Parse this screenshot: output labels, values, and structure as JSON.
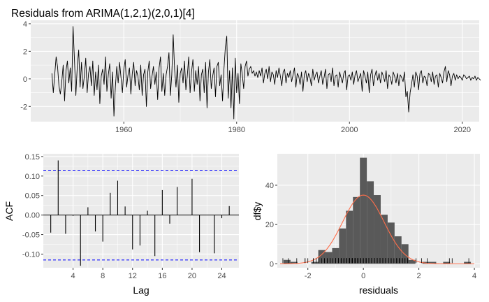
{
  "chart_data": [
    {
      "type": "line",
      "title": "Residuals from ARIMA(1,2,1)(2,0,1)[4]",
      "xlabel": "",
      "ylabel": "",
      "xlim": [
        1943.5,
        2023.0
      ],
      "ylim": [
        -3.1,
        4.25
      ],
      "x_ticks": [
        1960,
        1980,
        2000,
        2020
      ],
      "y_ticks": [
        -2,
        0,
        2,
        4
      ],
      "grid": true,
      "series": [
        {
          "start": 1947.25,
          "frequency": 4,
          "values": [
            0.4,
            -1.0,
            0.3,
            1.6,
            0.9,
            -0.5,
            -1.1,
            -0.2,
            1.0,
            -1.6,
            0.6,
            1.3,
            -0.3,
            0.8,
            -0.9,
            3.8,
            1.4,
            -1.2,
            0.9,
            2.1,
            -0.6,
            1.2,
            -0.7,
            0.2,
            1.5,
            -1.0,
            0.4,
            0.9,
            -0.5,
            1.3,
            -1.2,
            0.5,
            -0.8,
            1.0,
            -1.8,
            0.2,
            0.7,
            -0.4,
            1.6,
            -0.9,
            0.3,
            1.1,
            -1.4,
            0.5,
            -2.7,
            -0.6,
            0.9,
            -0.3,
            1.2,
            0.1,
            -1.0,
            0.7,
            1.4,
            -0.6,
            0.3,
            0.8,
            -1.1,
            0.4,
            1.2,
            -0.5,
            0.6,
            0.2,
            -0.8,
            1.0,
            -1.2,
            0.3,
            0.7,
            -2.0,
            0.5,
            1.3,
            -0.7,
            0.2,
            0.9,
            -0.4,
            0.5,
            -1.5,
            0.8,
            1.6,
            -0.9,
            0.4,
            -1.2,
            0.3,
            0.9,
            1.9,
            -1.2,
            0.3,
            3.2,
            0.7,
            -0.6,
            1.0,
            -1.7,
            0.4,
            0.8,
            -0.3,
            1.3,
            -0.8,
            0.2,
            1.6,
            -1.0,
            0.5,
            1.4,
            -0.9,
            0.6,
            -0.4,
            0.9,
            -1.6,
            0.3,
            0.7,
            -1.0,
            1.2,
            -2.1,
            0.5,
            1.4,
            -0.7,
            0.2,
            0.8,
            -1.3,
            0.9,
            1.2,
            -0.5,
            0.3,
            -1.6,
            0.7,
            2.3,
            3.1,
            -1.4,
            0.6,
            -2.1,
            0.8,
            -2.9,
            1.5,
            -1.0,
            0.4,
            -1.8,
            1.1,
            0.3,
            -0.7,
            0.9,
            1.3,
            0.2,
            0.7,
            0.9,
            0.4,
            0.6,
            0.2,
            0.5,
            0.1,
            0.6,
            0.2,
            0.8,
            -0.3,
            0.4,
            0.7,
            0.0,
            0.9,
            -0.2,
            0.5,
            0.3,
            -0.4,
            0.6,
            0.1,
            0.8,
            0.2,
            -0.5,
            0.5,
            0.7,
            -0.3,
            0.4,
            0.1,
            0.6,
            -0.2,
            0.3,
            0.8,
            -0.6,
            0.4,
            0.2,
            -0.4,
            0.5,
            -0.9,
            0.3,
            0.6,
            -0.2,
            0.4,
            0.1,
            -0.5,
            0.7,
            -0.1,
            0.3,
            0.5,
            -0.3,
            0.2,
            0.6,
            -0.4,
            0.1,
            0.7,
            -0.7,
            0.3,
            0.4,
            -0.2,
            0.8,
            -0.5,
            0.2,
            0.3,
            -0.6,
            0.5,
            0.1,
            -0.3,
            0.4,
            0.6,
            -0.8,
            0.2,
            0.3,
            -0.1,
            0.5,
            -0.4,
            0.3,
            0.6,
            -0.2,
            0.1,
            0.4,
            -0.9,
            0.6,
            0.2,
            -0.3,
            0.5,
            -1.0,
            0.3,
            0.7,
            -0.5,
            0.2,
            0.6,
            -0.1,
            0.4,
            -0.3,
            0.5,
            0.2,
            -0.2,
            0.6,
            -0.7,
            0.3,
            0.1,
            -0.4,
            0.5,
            0.2,
            -0.3,
            0.4,
            -0.5,
            0.3,
            0.1,
            -0.2,
            0.5,
            -1.3,
            -0.9,
            -2.4,
            -1.0,
            -0.4,
            0.3,
            -0.6,
            0.5,
            0.2,
            -0.8,
            0.4,
            0.6,
            -0.3,
            0.2,
            0.1,
            -0.5,
            0.4,
            0.3,
            -0.2,
            0.5,
            -0.4,
            0.2,
            0.3,
            -0.6,
            0.4,
            0.1,
            -0.3,
            0.5,
            0.9,
            -0.2,
            0.6,
            0.3,
            -0.5,
            0.2,
            0.4,
            -0.1,
            0.3,
            0.0,
            0.2,
            0.1,
            -0.1,
            0.3,
            0.2,
            0.0,
            0.1,
            0.2,
            -0.1,
            0.1,
            0.0,
            0.2,
            -0.1,
            0.1,
            0.0,
            -0.1
          ]
        }
      ]
    },
    {
      "type": "bar",
      "xlabel": "Lag",
      "ylabel": "ACF",
      "xlim": [
        0,
        26.3
      ],
      "ylim": [
        -0.135,
        0.157
      ],
      "x_ticks": [
        4,
        8,
        12,
        16,
        20,
        24
      ],
      "y_ticks": [
        -0.1,
        -0.05,
        0,
        0.05,
        0.1,
        0.15
      ],
      "y_tick_labels": [
        "-0.10",
        "-0.05",
        "0.00",
        "0.05",
        "0.10",
        "0.15"
      ],
      "grid": true,
      "lags": [
        1,
        2,
        3,
        4,
        5,
        6,
        7,
        8,
        9,
        10,
        11,
        12,
        13,
        14,
        15,
        16,
        17,
        18,
        19,
        20,
        21,
        22,
        23,
        24,
        25
      ],
      "values": [
        -0.045,
        0.14,
        -0.048,
        -0.002,
        -0.13,
        0.02,
        -0.042,
        -0.068,
        0.057,
        0.088,
        0.022,
        -0.088,
        -0.078,
        0.011,
        -0.105,
        0.064,
        -0.022,
        0.072,
        0.0,
        0.093,
        -0.095,
        0.0,
        -0.098,
        -0.008,
        0.023
      ],
      "confidence_bound": 0.115
    },
    {
      "type": "bar",
      "xlabel": "residuals",
      "ylabel": "df$y",
      "xlim": [
        -3.1,
        4.2
      ],
      "ylim": [
        -2,
        56
      ],
      "x_ticks": [
        -2,
        0,
        2,
        4
      ],
      "y_ticks": [
        0,
        20,
        40
      ],
      "grid": true,
      "bin_width": 0.25,
      "bin_starts": [
        -2.875,
        -2.625,
        -2.375,
        -2.125,
        -1.875,
        -1.625,
        -1.375,
        -1.125,
        -0.875,
        -0.625,
        -0.375,
        -0.125,
        0.125,
        0.375,
        0.625,
        0.875,
        1.125,
        1.375,
        1.625,
        1.875,
        2.125,
        2.375,
        2.625,
        2.875,
        3.125,
        3.375,
        3.625
      ],
      "counts": [
        2,
        1,
        0,
        0,
        1,
        7,
        6,
        8,
        18,
        27,
        34,
        54,
        42,
        35,
        25,
        21,
        14,
        10,
        2,
        0,
        1,
        1,
        0,
        1,
        0,
        0,
        1
      ],
      "normal_curve": {
        "mean": 0.0,
        "sd": 0.75,
        "peak": 35
      }
    }
  ],
  "colors": {
    "panel_background": "#ebebeb",
    "gridline": "#ffffff",
    "series_line": "#000000",
    "acf_bar": "#000000",
    "confidence_line": "#0000ff",
    "histogram_bar": "#595959",
    "density_curve": "#ff6e4a",
    "rug": "#000000",
    "tick_text": "#4d4d4d"
  }
}
